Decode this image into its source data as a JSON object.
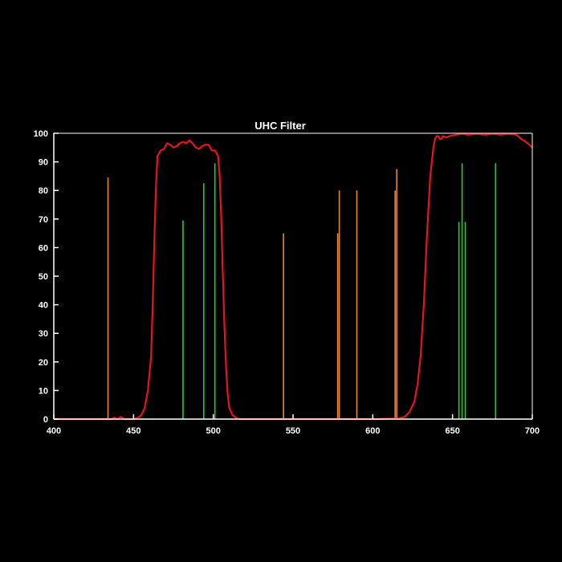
{
  "chart_data": {
    "type": "line",
    "title": "UHC Filter",
    "xlabel": "",
    "ylabel": "",
    "xlim": [
      400,
      700
    ],
    "ylim": [
      0,
      100
    ],
    "x_ticks": [
      400,
      450,
      500,
      550,
      600,
      650,
      700
    ],
    "y_ticks": [
      0,
      10,
      20,
      30,
      40,
      50,
      60,
      70,
      80,
      90,
      100
    ],
    "grid": false,
    "colors": {
      "background": "#000000",
      "axes": "#ffffff",
      "transmission": "#e8141c",
      "orange_lines": "#e8883a",
      "green_lines": "#2ecc2e"
    },
    "series": [
      {
        "type": "line",
        "color": "#e8141c",
        "x": [
          400,
          436,
          438,
          440,
          442,
          444,
          450,
          453,
          455,
          457,
          459,
          461,
          462,
          463,
          464,
          465,
          467,
          469,
          471,
          473,
          475,
          477,
          479,
          481,
          483,
          485,
          487,
          489,
          491,
          493,
          495,
          497,
          499,
          501,
          503,
          504,
          505,
          506,
          507,
          508,
          509,
          510,
          512,
          514,
          516,
          520,
          600,
          616,
          620,
          623,
          626,
          628,
          630,
          632,
          634,
          636,
          638,
          639,
          640,
          641,
          642,
          643,
          644,
          646,
          648,
          652,
          656,
          660,
          665,
          670,
          675,
          680,
          685,
          690,
          693,
          696,
          700
        ],
        "y": [
          0,
          0,
          0.5,
          0,
          0.8,
          0,
          0,
          0.5,
          1.5,
          4,
          10,
          22,
          40,
          62,
          80,
          92,
          94,
          94.5,
          96.5,
          96,
          95,
          95.5,
          96.5,
          97,
          96.5,
          97.5,
          96.5,
          95,
          94.5,
          95.5,
          96,
          96,
          94,
          94,
          92,
          85,
          70,
          50,
          32,
          18,
          9,
          4,
          1.5,
          0.5,
          0,
          0,
          0,
          0.2,
          0.8,
          2.5,
          6,
          12,
          22,
          40,
          65,
          85,
          95,
          98,
          99,
          99,
          98,
          98,
          99,
          98.5,
          99,
          99.5,
          99.8,
          99.5,
          99.8,
          99.5,
          99.8,
          99.5,
          99.8,
          99.5,
          98,
          97,
          95
        ]
      },
      {
        "type": "lines",
        "color": "#e8883a",
        "x": [
          434,
          544,
          578,
          579,
          590,
          614,
          615
        ],
        "y": [
          84.5,
          65,
          65,
          80,
          80,
          80,
          87.5
        ]
      },
      {
        "type": "lines",
        "color": "#2ecc2e",
        "x": [
          481,
          494,
          501,
          654,
          656,
          658,
          677
        ],
        "y": [
          69.5,
          82.5,
          89.5,
          69,
          89.5,
          69,
          89.5
        ]
      }
    ]
  }
}
